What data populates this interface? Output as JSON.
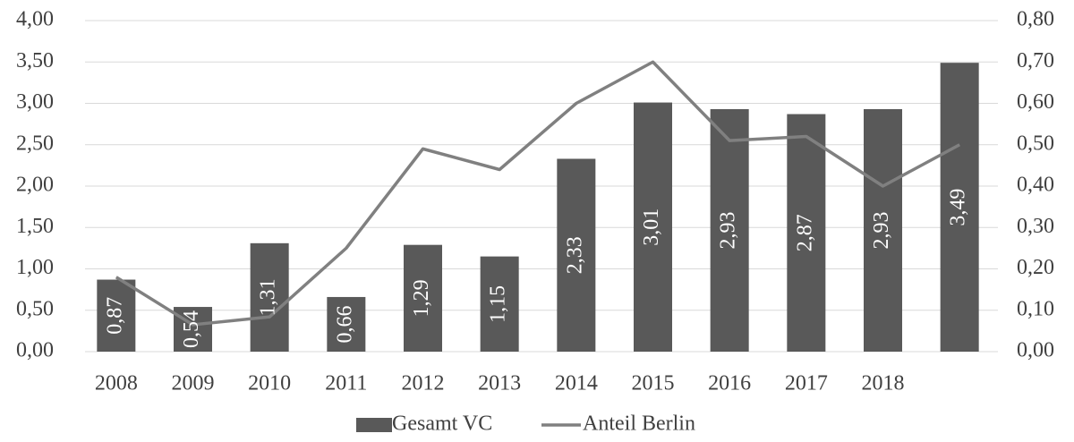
{
  "chart_data": {
    "type": "bar",
    "categories": [
      "2008",
      "2009",
      "2010",
      "2011",
      "2012",
      "2013",
      "2014",
      "2015",
      "2016",
      "2017",
      "2018",
      null
    ],
    "series": [
      {
        "name": "Gesamt VC",
        "type": "bar",
        "color": "#595959",
        "values": [
          0.87,
          0.54,
          1.31,
          0.66,
          1.29,
          1.15,
          2.33,
          3.01,
          2.93,
          2.87,
          2.93,
          3.49
        ],
        "value_labels": [
          "0,87",
          "0,54",
          "1,31",
          "0,66",
          "1,29",
          "1,15",
          "2,33",
          "3,01",
          "2,93",
          "2,87",
          "2,93",
          "3,49"
        ]
      },
      {
        "name": "Anteil Berlin",
        "type": "line",
        "color": "#808080",
        "axis": "y2",
        "values": [
          0.18,
          0.065,
          0.084,
          0.25,
          0.49,
          0.44,
          0.6,
          0.7,
          0.51,
          0.52,
          0.4,
          0.5
        ]
      }
    ],
    "ylim": [
      0,
      4
    ],
    "yticks": [
      {
        "value": 0,
        "label": "0,00"
      },
      {
        "value": 0.5,
        "label": "0,50"
      },
      {
        "value": 1,
        "label": "1,00"
      },
      {
        "value": 1.5,
        "label": "1,50"
      },
      {
        "value": 2,
        "label": "2,00"
      },
      {
        "value": 2.5,
        "label": "2,50"
      },
      {
        "value": 3,
        "label": "3,00"
      },
      {
        "value": 3.5,
        "label": "3,50"
      },
      {
        "value": 4,
        "label": "4,00"
      }
    ],
    "y2lim": [
      0,
      0.8
    ],
    "y2ticks": [
      {
        "value": 0,
        "label": "0,00"
      },
      {
        "value": 0.1,
        "label": "0,10"
      },
      {
        "value": 0.2,
        "label": "0,20"
      },
      {
        "value": 0.3,
        "label": "0,30"
      },
      {
        "value": 0.4,
        "label": "0,40"
      },
      {
        "value": 0.5,
        "label": "0,50"
      },
      {
        "value": 0.6,
        "label": "0,60"
      },
      {
        "value": 0.7,
        "label": "0,70"
      },
      {
        "value": 0.8,
        "label": "0,80"
      }
    ],
    "grid": true,
    "legend": "bottom"
  }
}
